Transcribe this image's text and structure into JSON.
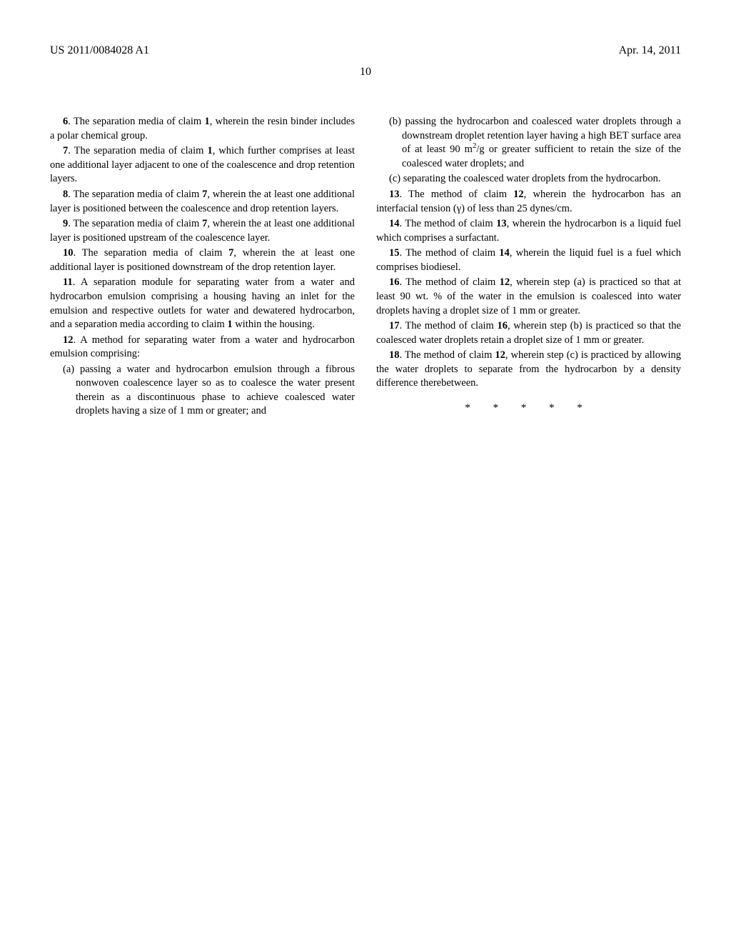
{
  "header": {
    "pub_number": "US 2011/0084028 A1",
    "date": "Apr. 14, 2011"
  },
  "page_number": "10",
  "left_column": {
    "claim6": {
      "num": "6",
      "text": ". The separation media of claim ",
      "ref": "1",
      "tail": ", wherein the resin binder includes a polar chemical group."
    },
    "claim7": {
      "num": "7",
      "text": ". The separation media of claim ",
      "ref": "1",
      "tail": ", which further comprises at least one additional layer adjacent to one of the coalescence and drop retention layers."
    },
    "claim8": {
      "num": "8",
      "text": ". The separation media of claim ",
      "ref": "7",
      "tail": ", wherein the at least one additional layer is positioned between the coalescence and drop retention layers."
    },
    "claim9": {
      "num": "9",
      "text": ". The separation media of claim ",
      "ref": "7",
      "tail": ", wherein the at least one additional layer is positioned upstream of the coalescence layer."
    },
    "claim10": {
      "num": "10",
      "text": ". The separation media of claim ",
      "ref": "7",
      "tail": ", wherein the at least one additional layer is positioned downstream of the drop retention layer."
    },
    "claim11": {
      "num": "11",
      "text": ". A separation module for separating water from a water and hydrocarbon emulsion comprising a housing having an inlet for the emulsion and respective outlets for water and dewatered hydrocarbon, and a separation media according to claim ",
      "ref": "1",
      "tail": " within the housing."
    },
    "claim12": {
      "num": "12",
      "text": ". A method for separating water from a water and hydrocarbon emulsion comprising:"
    },
    "claim12a": "(a) passing a water and hydrocarbon emulsion through a fibrous nonwoven coalescence layer so as to coalesce the water present therein as a discontinuous phase to achieve coalesced water droplets having a size of 1 mm or greater; and"
  },
  "right_column": {
    "claim12b_pre": "(b) passing the hydrocarbon and coalesced water droplets through a downstream droplet retention layer having a high BET surface area of at least 90 m",
    "claim12b_post": "/g or greater sufficient to retain the size of the coalesced water droplets; and",
    "claim12c": "(c) separating the coalesced water droplets from the hydrocarbon.",
    "claim13": {
      "num": "13",
      "text": ". The method of claim ",
      "ref": "12",
      "tail": ", wherein the hydrocarbon has an interfacial tension (γ) of less than 25 dynes/cm."
    },
    "claim14": {
      "num": "14",
      "text": ". The method of claim ",
      "ref": "13",
      "tail": ", wherein the hydrocarbon is a liquid fuel which comprises a surfactant."
    },
    "claim15": {
      "num": "15",
      "text": ". The method of claim ",
      "ref": "14",
      "tail": ", wherein the liquid fuel is a fuel which comprises biodiesel."
    },
    "claim16": {
      "num": "16",
      "text": ". The method of claim ",
      "ref": "12",
      "tail": ", wherein step (a) is practiced so that at least 90 wt. % of the water in the emulsion is coalesced into water droplets having a droplet size of 1 mm or greater."
    },
    "claim17": {
      "num": "17",
      "text": ". The method of claim ",
      "ref": "16",
      "tail": ", wherein step (b) is practiced so that the coalesced water droplets retain a droplet size of 1 mm or greater."
    },
    "claim18": {
      "num": "18",
      "text": ". The method of claim ",
      "ref": "12",
      "tail": ", wherein step (c) is practiced by allowing the water droplets to separate from the hydrocarbon by a density difference therebetween."
    }
  },
  "asterisks": "* * * * *",
  "sup2": "2"
}
